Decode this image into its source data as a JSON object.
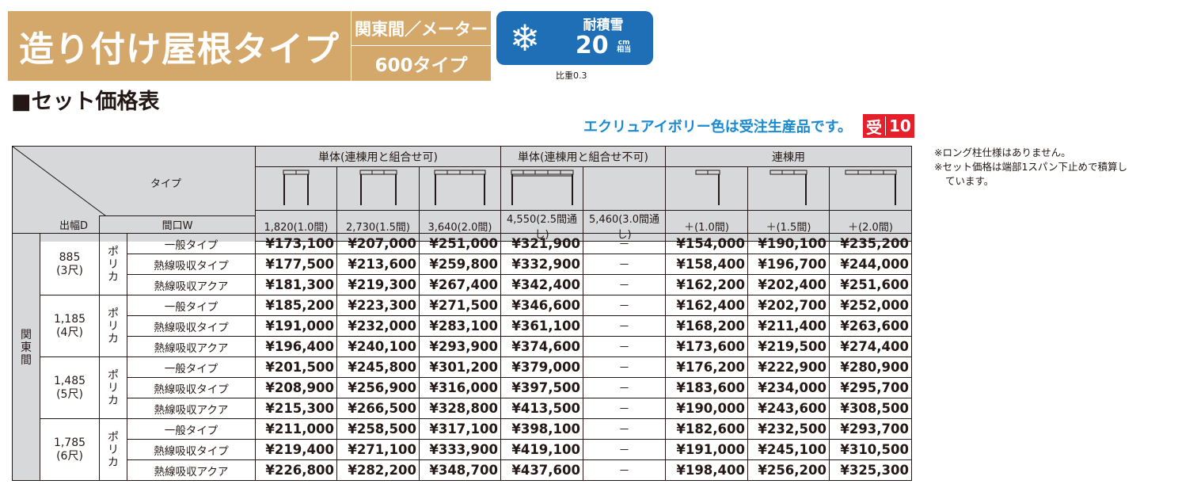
{
  "header": {
    "title": "造り付け屋根タイプ",
    "region": "関東間／メーター",
    "size_type": "600タイプ",
    "snow": {
      "icon": "snowflake-icon",
      "label": "耐積雪",
      "value": "20",
      "unit_top": "cm",
      "unit_bottom": "相当",
      "specific_gravity": "比重0.3"
    },
    "colors": {
      "title_bg": "#d4a86a",
      "snow_bg": "#1f6fb7",
      "notice": "#1a8ad2",
      "badge": "#e6202a"
    }
  },
  "section_title": "■セット価格表",
  "notice": "エクリュアイボリー色は受注生産品です。",
  "order_badge": {
    "kanji": "受",
    "days": "10"
  },
  "notes": [
    "※ロング柱仕様はありません。",
    "※セット価格は端部1スパン下止めで積算し",
    "ています。"
  ],
  "table": {
    "corner_type_label": "タイプ",
    "corner_depth_label": "出幅D",
    "width_label": "間口W",
    "groups": [
      {
        "label": "単体(連棟用と組合せ可)",
        "span": 3
      },
      {
        "label": "単体(連棟用と組合せ不可)",
        "span": 2
      },
      {
        "label": "連棟用",
        "span": 3
      }
    ],
    "widths": [
      "1,820(1.0間)",
      "2,730(1.5間)",
      "3,640(2.0間)",
      "4,550(2.5間通し)",
      "5,460(3.0間通し)",
      "＋(1.0間)",
      "＋(1.5間)",
      "＋(2.0間)"
    ],
    "region": "関東間",
    "material": "ポリカ",
    "sizes": [
      {
        "depth": "885",
        "shaku": "(3尺)",
        "rows": [
          {
            "type": "一般タイプ",
            "prices": [
              "¥173,100",
              "¥207,000",
              "¥251,000",
              "¥321,900",
              "－",
              "¥154,000",
              "¥190,100",
              "¥235,200"
            ]
          },
          {
            "type": "熱線吸収タイプ",
            "prices": [
              "¥177,500",
              "¥213,600",
              "¥259,800",
              "¥332,900",
              "－",
              "¥158,400",
              "¥196,700",
              "¥244,000"
            ]
          },
          {
            "type": "熱線吸収アクア",
            "prices": [
              "¥181,300",
              "¥219,300",
              "¥267,400",
              "¥342,400",
              "－",
              "¥162,200",
              "¥202,400",
              "¥251,600"
            ]
          }
        ]
      },
      {
        "depth": "1,185",
        "shaku": "(4尺)",
        "rows": [
          {
            "type": "一般タイプ",
            "prices": [
              "¥185,200",
              "¥223,300",
              "¥271,500",
              "¥346,600",
              "－",
              "¥162,400",
              "¥202,700",
              "¥252,000"
            ]
          },
          {
            "type": "熱線吸収タイプ",
            "prices": [
              "¥191,000",
              "¥232,000",
              "¥283,100",
              "¥361,100",
              "－",
              "¥168,200",
              "¥211,400",
              "¥263,600"
            ]
          },
          {
            "type": "熱線吸収アクア",
            "prices": [
              "¥196,400",
              "¥240,100",
              "¥293,900",
              "¥374,600",
              "－",
              "¥173,600",
              "¥219,500",
              "¥274,400"
            ]
          }
        ]
      },
      {
        "depth": "1,485",
        "shaku": "(5尺)",
        "rows": [
          {
            "type": "一般タイプ",
            "prices": [
              "¥201,500",
              "¥245,800",
              "¥301,200",
              "¥379,000",
              "－",
              "¥176,200",
              "¥222,900",
              "¥280,900"
            ]
          },
          {
            "type": "熱線吸収タイプ",
            "prices": [
              "¥208,900",
              "¥256,900",
              "¥316,000",
              "¥397,500",
              "－",
              "¥183,600",
              "¥234,000",
              "¥295,700"
            ]
          },
          {
            "type": "熱線吸収アクア",
            "prices": [
              "¥215,300",
              "¥266,500",
              "¥328,800",
              "¥413,500",
              "－",
              "¥190,000",
              "¥243,600",
              "¥308,500"
            ]
          }
        ]
      },
      {
        "depth": "1,785",
        "shaku": "(6尺)",
        "rows": [
          {
            "type": "一般タイプ",
            "prices": [
              "¥211,000",
              "¥258,500",
              "¥317,100",
              "¥398,100",
              "－",
              "¥182,600",
              "¥232,500",
              "¥293,700"
            ]
          },
          {
            "type": "熱線吸収タイプ",
            "prices": [
              "¥219,400",
              "¥271,100",
              "¥333,900",
              "¥419,100",
              "－",
              "¥191,000",
              "¥245,100",
              "¥310,500"
            ]
          },
          {
            "type": "熱線吸収アクア",
            "prices": [
              "¥226,800",
              "¥282,200",
              "¥348,700",
              "¥437,600",
              "－",
              "¥198,400",
              "¥256,200",
              "¥325,300"
            ]
          }
        ]
      }
    ]
  }
}
